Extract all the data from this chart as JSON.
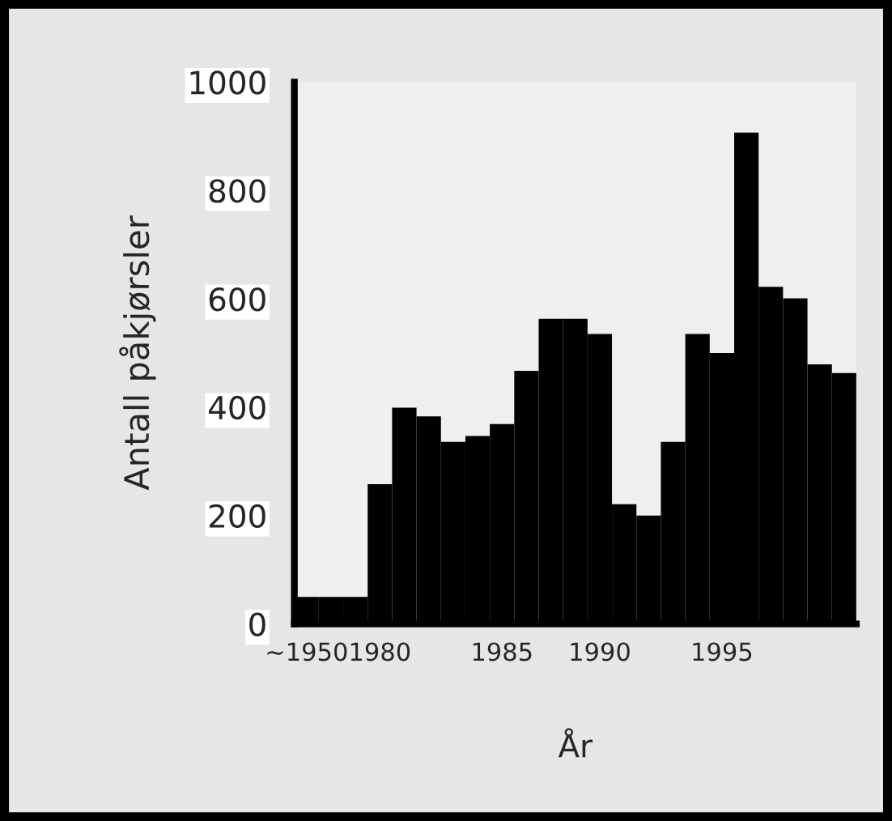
{
  "chart_data": {
    "type": "bar",
    "xlabel": "År",
    "ylabel": "Antall påkjørsler",
    "categories": [
      "~1950",
      null,
      null,
      "1980",
      null,
      null,
      null,
      null,
      "1985",
      null,
      null,
      null,
      "1990",
      null,
      null,
      null,
      null,
      "1995",
      null,
      null,
      null,
      null,
      null
    ],
    "values": [
      50,
      50,
      50,
      258,
      399,
      383,
      336,
      347,
      369,
      467,
      563,
      563,
      535,
      221,
      200,
      336,
      535,
      500,
      907,
      622,
      601,
      479,
      463
    ],
    "color": "#000000",
    "ylim": [
      0,
      1000
    ],
    "yticks": [
      0,
      200,
      400,
      600,
      800,
      1000
    ],
    "grid": false
  }
}
